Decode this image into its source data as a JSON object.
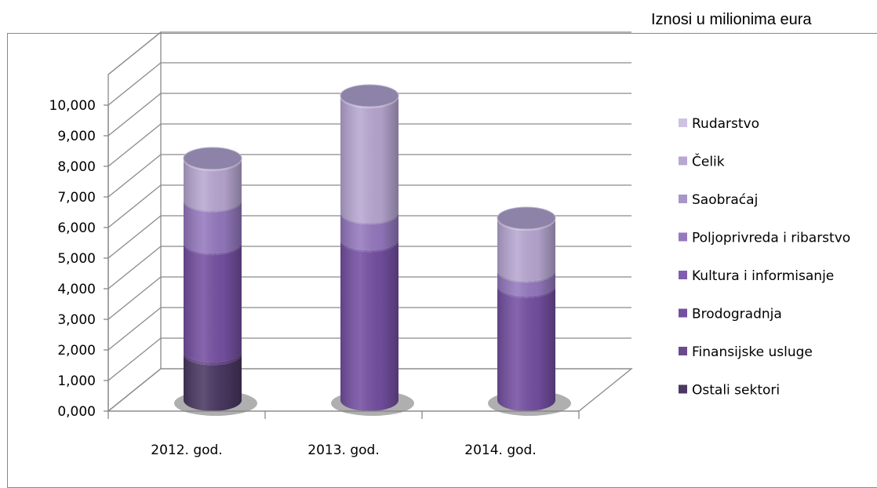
{
  "unit_note": "Iznosi u milionima eura",
  "chart_data": {
    "type": "bar",
    "style": "stacked 3D cylinders",
    "categories": [
      "2012. god.",
      "2013. god.",
      "2014. god."
    ],
    "yticks": [
      "0,000",
      "1,000",
      "2,000",
      "3,000",
      "4,000",
      "5,000",
      "6,000",
      "7,000",
      "8,000",
      "9,000",
      "10,000"
    ],
    "ylim": [
      0,
      10
    ],
    "legend_position": "right",
    "series": [
      {
        "name": "Ostali sektori",
        "color": "#4a3862",
        "values": [
          1.5,
          0.0,
          0.0
        ]
      },
      {
        "name": "Finansijske usluge",
        "color": "#6a4a8e",
        "values": [
          0.1,
          0.0,
          0.0
        ]
      },
      {
        "name": "Brodogradnja",
        "color": "#7550a2",
        "values": [
          3.5,
          5.2,
          3.7
        ]
      },
      {
        "name": "Kultura i informisanje",
        "color": "#8060ad",
        "values": [
          0.05,
          0.05,
          0.05
        ]
      },
      {
        "name": "Poljoprivreda i ribarstvo",
        "color": "#9579bf",
        "values": [
          1.35,
          0.85,
          0.45
        ]
      },
      {
        "name": "Saobraćaj",
        "color": "#a896c6",
        "values": [
          0.05,
          0.05,
          0.05
        ]
      },
      {
        "name": "Čelik",
        "color": "#b8a7d2",
        "values": [
          1.3,
          3.75,
          1.65
        ]
      },
      {
        "name": "Rudarstvo",
        "color": "#cdc3e0",
        "values": [
          0.05,
          0.05,
          0.05
        ]
      }
    ]
  }
}
